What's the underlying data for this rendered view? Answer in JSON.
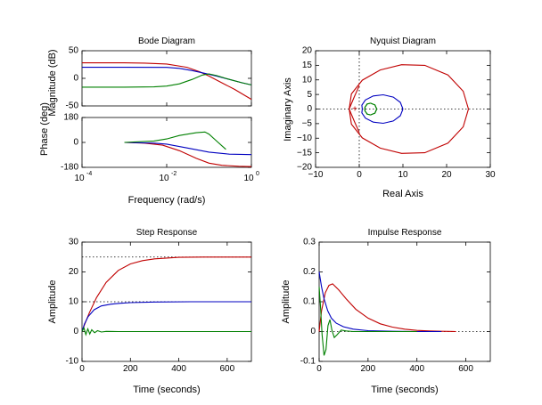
{
  "chart_data": [
    {
      "type": "line",
      "title": "Bode Diagram",
      "xlabel": "Frequency  (rad/s)",
      "x_scale": "log",
      "xlim": [
        0.0001,
        1
      ],
      "x_ticks": [
        {
          "value": 0.0001,
          "base": "10",
          "exp": "-4"
        },
        {
          "value": 0.01,
          "base": "10",
          "exp": "-2"
        },
        {
          "value": 1,
          "base": "10",
          "exp": "0"
        }
      ],
      "magnitude": {
        "ylabel": "Magnitude (dB)",
        "ylim": [
          -50,
          50
        ],
        "y_ticks": [
          -50,
          0,
          50
        ],
        "y_tick_labels": [
          "-50",
          "0",
          "50"
        ],
        "series": [
          {
            "color": "#c00000",
            "x": [
              0.0001,
              0.001,
              0.003,
              0.01,
              0.03,
              0.06,
              0.1,
              0.2,
              0.4,
              1
            ],
            "y": [
              28,
              28,
              27.6,
              26,
              20,
              12,
              4,
              -8,
              -20,
              -38
            ]
          },
          {
            "color": "#0000c0",
            "x": [
              0.0001,
              0.001,
              0.01,
              0.02,
              0.04,
              0.08,
              0.15,
              0.3,
              0.6,
              1
            ],
            "y": [
              20,
              20,
              19.8,
              18,
              14,
              9,
              4,
              -2,
              -8,
              -12
            ]
          },
          {
            "color": "#008000",
            "x": [
              0.0001,
              0.001,
              0.005,
              0.01,
              0.02,
              0.04,
              0.07,
              0.1,
              0.15,
              0.3,
              0.6,
              1
            ],
            "y": [
              -16,
              -16,
              -15.5,
              -14,
              -10,
              -2,
              6,
              8,
              5,
              -2,
              -8,
              -12
            ]
          }
        ]
      },
      "phase": {
        "ylabel": "Phase (deg)",
        "ylim": [
          -180,
          180
        ],
        "y_ticks": [
          -180,
          0,
          180
        ],
        "y_tick_labels": [
          "-180",
          "0",
          "180"
        ],
        "series": [
          {
            "color": "#c00000",
            "x": [
              0.001,
              0.003,
              0.008,
              0.02,
              0.05,
              0.1,
              0.2,
              0.5,
              1
            ],
            "y": [
              0,
              -5,
              -20,
              -60,
              -115,
              -150,
              -165,
              -172,
              -175
            ]
          },
          {
            "color": "#0000c0",
            "x": [
              0.001,
              0.005,
              0.01,
              0.03,
              0.1,
              0.3,
              1
            ],
            "y": [
              0,
              -5,
              -12,
              -40,
              -70,
              -85,
              -88
            ]
          },
          {
            "color": "#008000",
            "x": [
              0.001,
              0.005,
              0.01,
              0.02,
              0.05,
              0.08,
              0.1,
              0.15,
              0.25
            ],
            "y": [
              0,
              10,
              25,
              50,
              70,
              75,
              60,
              10,
              -50
            ]
          }
        ]
      }
    },
    {
      "type": "line",
      "title": "Nyquist Diagram",
      "xlabel": "Real Axis",
      "ylabel": "Imaginary Axis",
      "xlim": [
        -10,
        30
      ],
      "ylim": [
        -20,
        20
      ],
      "x_ticks": [
        -10,
        0,
        10,
        20,
        30
      ],
      "x_tick_labels": [
        "−10",
        "0",
        "10",
        "20",
        "30"
      ],
      "y_ticks": [
        -20,
        -15,
        -10,
        -5,
        0,
        5,
        10,
        15,
        20
      ],
      "y_tick_labels": [
        "−20",
        "−15",
        "−10",
        "−5",
        "0",
        "5",
        "10",
        "15",
        "20"
      ],
      "critical_point": [
        -1,
        0
      ],
      "series": [
        {
          "color": "#c00000",
          "x": [
            25,
            23.8,
            20.3,
            15,
            9.7,
            4.8,
            0.7,
            -1.8,
            -2.3,
            -1.1,
            0
          ],
          "y": [
            0,
            6.1,
            11.7,
            15,
            15.2,
            13.4,
            9.9,
            5.2,
            0,
            -4.3,
            -8
          ]
        },
        {
          "color": "#0000c0",
          "x": [
            10,
            9.4,
            7.8,
            5.5,
            3.2,
            1.4,
            0.6,
            0.7
          ],
          "y": [
            0,
            2.3,
            4.1,
            4.9,
            4.5,
            3.1,
            1.3,
            0
          ]
        },
        {
          "color": "#008000",
          "x": [
            4.0,
            3.6,
            2.6,
            1.8,
            1.3,
            1.3,
            1.8,
            2.6,
            3.6,
            4.0
          ],
          "y": [
            0,
            1.4,
            2.0,
            1.7,
            0.6,
            -0.6,
            -1.7,
            -2.0,
            -1.4,
            0
          ]
        }
      ]
    },
    {
      "type": "line",
      "title": "Step Response",
      "xlabel": "Time (seconds)",
      "ylabel": "Amplitude",
      "xlim": [
        0,
        700
      ],
      "ylim": [
        -10,
        30
      ],
      "x_ticks": [
        0,
        200,
        400,
        600
      ],
      "x_tick_labels": [
        "0",
        "200",
        "400",
        "600"
      ],
      "y_ticks": [
        -10,
        0,
        10,
        20,
        30
      ],
      "y_tick_labels": [
        "-10",
        "0",
        "10",
        "20",
        "30"
      ],
      "final_values": [
        25,
        10
      ],
      "series": [
        {
          "color": "#c00000",
          "x": [
            0,
            10,
            30,
            60,
            100,
            150,
            200,
            250,
            300,
            400,
            500,
            700
          ],
          "y": [
            0,
            2.2,
            6.2,
            11.4,
            16.5,
            20.5,
            22.7,
            23.8,
            24.4,
            24.9,
            25,
            25
          ]
        },
        {
          "color": "#0000c0",
          "x": [
            0,
            10,
            25,
            50,
            80,
            120,
            160,
            200,
            300,
            450,
            700
          ],
          "y": [
            0,
            2.5,
            5,
            7.3,
            8.6,
            9.2,
            9.5,
            9.7,
            9.9,
            10,
            10
          ]
        },
        {
          "color": "#008000",
          "x": [
            0,
            8,
            16,
            24,
            32,
            40,
            52,
            64,
            80,
            100,
            150,
            700
          ],
          "y": [
            0,
            1.2,
            -1.0,
            0.9,
            -0.8,
            0.6,
            -0.4,
            0.3,
            -0.15,
            0.05,
            0,
            0
          ]
        }
      ]
    },
    {
      "type": "line",
      "title": "Impulse Response",
      "xlabel": "Time (seconds)",
      "ylabel": "Amplitude",
      "xlim": [
        0,
        700
      ],
      "ylim": [
        -0.1,
        0.3
      ],
      "x_ticks": [
        0,
        200,
        400,
        600
      ],
      "x_tick_labels": [
        "0",
        "200",
        "400",
        "600"
      ],
      "y_ticks": [
        -0.1,
        0,
        0.1,
        0.2,
        0.3
      ],
      "y_tick_labels": [
        "-0.1",
        "0",
        "0.1",
        "0.2",
        "0.3"
      ],
      "series": [
        {
          "color": "#c00000",
          "x": [
            0,
            10,
            25,
            40,
            55,
            80,
            110,
            150,
            200,
            250,
            300,
            350,
            400,
            450,
            500,
            560
          ],
          "y": [
            0,
            0.07,
            0.13,
            0.155,
            0.16,
            0.14,
            0.11,
            0.075,
            0.045,
            0.026,
            0.015,
            0.008,
            0.004,
            0.002,
            0.001,
            0
          ]
        },
        {
          "color": "#0000c0",
          "x": [
            0,
            10,
            20,
            35,
            50,
            70,
            100,
            140,
            200,
            300,
            400,
            500
          ],
          "y": [
            0.2,
            0.15,
            0.11,
            0.07,
            0.045,
            0.028,
            0.016,
            0.008,
            0.003,
            0.001,
            0,
            0
          ]
        },
        {
          "color": "#008000",
          "x": [
            0,
            5,
            12,
            20,
            28,
            36,
            44,
            52,
            62,
            74,
            90,
            110,
            140,
            200,
            400
          ],
          "y": [
            0.15,
            0.09,
            -0.01,
            -0.08,
            -0.06,
            0.02,
            0.04,
            0.005,
            -0.02,
            -0.01,
            0.005,
            0.002,
            0,
            0,
            0
          ]
        }
      ]
    }
  ]
}
